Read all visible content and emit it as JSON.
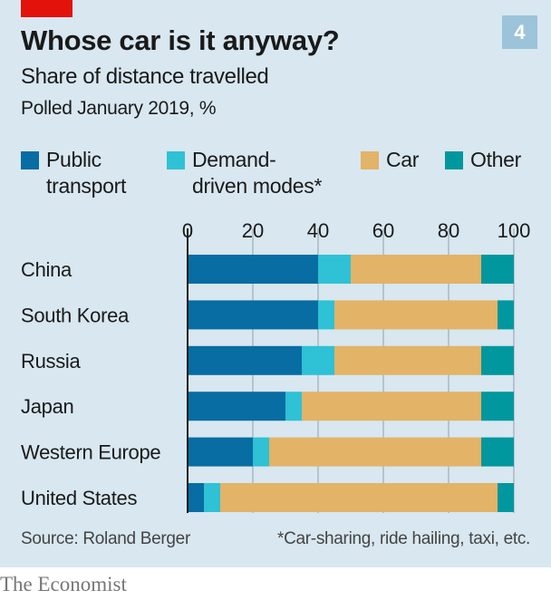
{
  "header": {
    "title": "Whose car is it anyway?",
    "subtitle": "Share of distance travelled",
    "subsubtitle": "Polled January 2019, %",
    "badge": "4"
  },
  "legend": [
    {
      "line1": "Public",
      "line2": "transport",
      "color": "#076da2"
    },
    {
      "line1": "Demand-",
      "line2": "driven modes*",
      "color": "#2fc1d5"
    },
    {
      "line1": "Car",
      "line2": "",
      "color": "#e3b367"
    },
    {
      "line1": "Other",
      "line2": "",
      "color": "#00979e"
    }
  ],
  "footer": {
    "source": "Source: Roland Berger",
    "footnote": "*Car-sharing, ride hailing, taxi, etc.",
    "brand": "The Economist"
  },
  "colors": {
    "accent": "#e3120b",
    "background": "#d8e7f0",
    "badge": "#9cc3d9"
  },
  "chart_data": {
    "type": "bar",
    "orientation": "horizontal",
    "stacked": true,
    "title": "Whose car is it anyway?",
    "subtitle": "Share of distance travelled",
    "xlabel": "",
    "ylabel": "",
    "unit": "%",
    "xlim": [
      0,
      100
    ],
    "xticks": [
      0,
      20,
      40,
      60,
      80,
      100
    ],
    "grid": true,
    "legend_position": "top",
    "categories": [
      "China",
      "South Korea",
      "Russia",
      "Japan",
      "Western Europe",
      "United States"
    ],
    "series": [
      {
        "name": "Public transport",
        "color": "#076da2",
        "values": [
          40,
          40,
          35,
          30,
          20,
          5
        ]
      },
      {
        "name": "Demand-driven modes*",
        "color": "#2fc1d5",
        "values": [
          10,
          5,
          10,
          5,
          5,
          5
        ]
      },
      {
        "name": "Car",
        "color": "#e3b367",
        "values": [
          40,
          50,
          45,
          55,
          65,
          85
        ]
      },
      {
        "name": "Other",
        "color": "#00979e",
        "values": [
          10,
          5,
          10,
          10,
          10,
          5
        ]
      }
    ]
  }
}
